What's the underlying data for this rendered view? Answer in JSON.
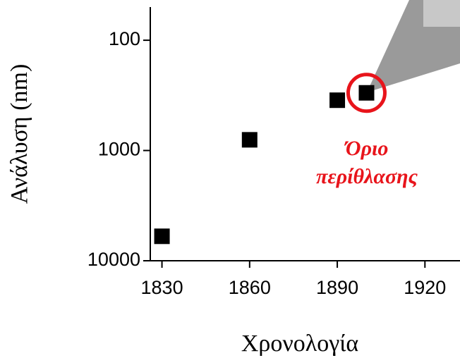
{
  "chart_data": {
    "type": "scatter",
    "x_label": "Χρονολογία",
    "y_label": "Ανάλυση (nm)",
    "x": [
      1830,
      1860,
      1890,
      1900
    ],
    "values": [
      6000,
      800,
      350,
      300
    ],
    "color": "#000000",
    "xlim": [
      1826,
      1932
    ],
    "xticks": [
      1830,
      1860,
      1890,
      1920
    ],
    "ylim": [
      10000,
      50
    ],
    "yticks": [
      10000,
      1000,
      100
    ],
    "ylog": true,
    "annotation": [
      "Όριο",
      "περίθλασης"
    ],
    "highlight": {
      "index": 3,
      "color": "#e8141b"
    }
  }
}
